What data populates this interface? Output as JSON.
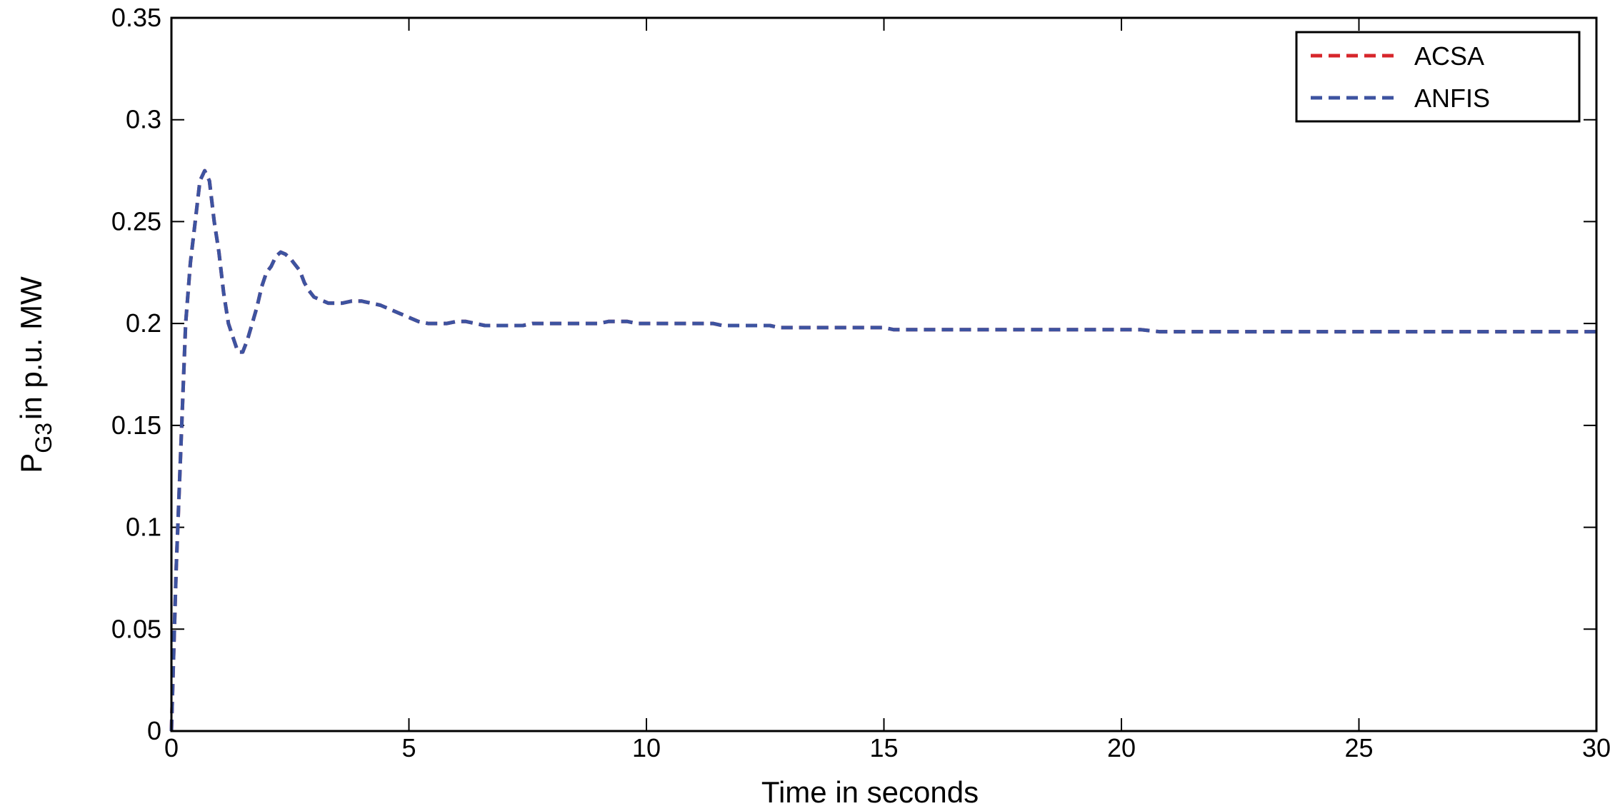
{
  "chart_data": {
    "type": "line",
    "xlabel": "Time in seconds",
    "ylabel": {
      "main": "P",
      "subscript": "G3",
      "rest": "in p.u. MW"
    },
    "xlim": [
      0,
      30
    ],
    "ylim": [
      0,
      0.35
    ],
    "xticks": [
      0,
      5,
      10,
      15,
      20,
      25,
      30
    ],
    "yticks": [
      0,
      0.05,
      0.1,
      0.15,
      0.2,
      0.25,
      0.3,
      0.35
    ],
    "ytick_labels": [
      "0",
      "0.05",
      "0.1",
      "0.15",
      "0.2",
      "0.25",
      "0.3",
      "0.35"
    ],
    "grid": false,
    "legend": "top-right",
    "series": [
      {
        "name": "ACSA",
        "color": "#d7262b",
        "style": "dashed",
        "x": [
          0,
          0.05,
          0.1,
          0.2,
          0.3,
          0.4,
          0.5,
          0.6,
          0.7,
          0.8,
          0.9,
          1.0,
          1.1,
          1.2,
          1.3,
          1.4,
          1.5,
          1.6,
          1.7,
          1.8,
          1.9,
          2.0,
          2.1,
          2.2,
          2.3,
          2.4,
          2.5,
          2.6,
          2.7,
          2.8,
          2.9,
          3.0,
          3.1,
          3.2,
          3.3,
          3.4,
          3.6,
          3.8,
          4.0,
          4.2,
          4.4,
          4.6,
          4.8,
          5.0,
          5.2,
          5.4,
          5.6,
          5.8,
          6.0,
          6.2,
          6.4,
          6.6,
          7.0,
          7.4,
          7.6,
          8.0,
          9.0,
          9.2,
          9.6,
          9.8,
          10.5,
          11.0,
          11.4,
          11.6,
          12.0,
          12.6,
          12.8,
          13.5,
          15.0,
          15.2,
          16.0,
          18.0,
          20.4,
          20.8,
          22.0,
          25.0,
          27.0,
          30.0
        ],
        "y": [
          0,
          0.04,
          0.08,
          0.14,
          0.2,
          0.23,
          0.25,
          0.27,
          0.275,
          0.27,
          0.25,
          0.235,
          0.215,
          0.2,
          0.193,
          0.186,
          0.186,
          0.192,
          0.2,
          0.208,
          0.218,
          0.225,
          0.228,
          0.233,
          0.235,
          0.234,
          0.232,
          0.229,
          0.226,
          0.22,
          0.216,
          0.213,
          0.212,
          0.211,
          0.21,
          0.21,
          0.21,
          0.211,
          0.211,
          0.21,
          0.209,
          0.207,
          0.205,
          0.203,
          0.201,
          0.2,
          0.2,
          0.2,
          0.201,
          0.201,
          0.2,
          0.199,
          0.199,
          0.199,
          0.2,
          0.2,
          0.2,
          0.201,
          0.201,
          0.2,
          0.2,
          0.2,
          0.2,
          0.199,
          0.199,
          0.199,
          0.198,
          0.198,
          0.198,
          0.197,
          0.197,
          0.197,
          0.197,
          0.196,
          0.196,
          0.196,
          0.196,
          0.196
        ]
      },
      {
        "name": "ANFIS",
        "color": "#3d53a0",
        "style": "dashed",
        "x": [
          0,
          0.05,
          0.1,
          0.2,
          0.3,
          0.4,
          0.5,
          0.6,
          0.7,
          0.8,
          0.9,
          1.0,
          1.1,
          1.2,
          1.3,
          1.4,
          1.5,
          1.6,
          1.7,
          1.8,
          1.9,
          2.0,
          2.1,
          2.2,
          2.3,
          2.4,
          2.5,
          2.6,
          2.7,
          2.8,
          2.9,
          3.0,
          3.1,
          3.2,
          3.3,
          3.4,
          3.6,
          3.8,
          4.0,
          4.2,
          4.4,
          4.6,
          4.8,
          5.0,
          5.2,
          5.4,
          5.6,
          5.8,
          6.0,
          6.2,
          6.4,
          6.6,
          7.0,
          7.4,
          7.6,
          8.0,
          9.0,
          9.2,
          9.6,
          9.8,
          10.5,
          11.0,
          11.4,
          11.6,
          12.0,
          12.6,
          12.8,
          13.5,
          15.0,
          15.2,
          16.0,
          18.0,
          20.4,
          20.8,
          22.0,
          25.0,
          27.0,
          30.0
        ],
        "y": [
          0,
          0.04,
          0.08,
          0.14,
          0.2,
          0.23,
          0.25,
          0.27,
          0.275,
          0.27,
          0.25,
          0.235,
          0.215,
          0.2,
          0.193,
          0.186,
          0.186,
          0.192,
          0.2,
          0.208,
          0.218,
          0.225,
          0.228,
          0.233,
          0.235,
          0.234,
          0.232,
          0.229,
          0.226,
          0.22,
          0.216,
          0.213,
          0.212,
          0.211,
          0.21,
          0.21,
          0.21,
          0.211,
          0.211,
          0.21,
          0.209,
          0.207,
          0.205,
          0.203,
          0.201,
          0.2,
          0.2,
          0.2,
          0.201,
          0.201,
          0.2,
          0.199,
          0.199,
          0.199,
          0.2,
          0.2,
          0.2,
          0.201,
          0.201,
          0.2,
          0.2,
          0.2,
          0.2,
          0.199,
          0.199,
          0.199,
          0.198,
          0.198,
          0.198,
          0.197,
          0.197,
          0.197,
          0.197,
          0.196,
          0.196,
          0.196,
          0.196,
          0.196
        ]
      }
    ]
  }
}
